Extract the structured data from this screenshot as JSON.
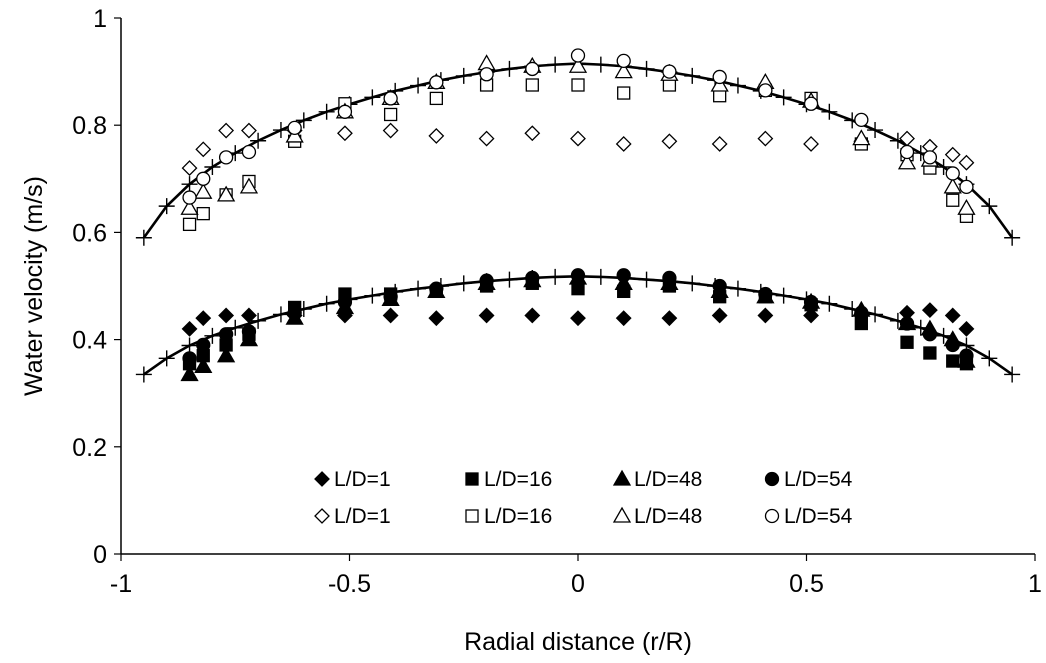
{
  "chart_data": {
    "type": "scatter",
    "xlabel": "Radial distance (r/R)",
    "ylabel": "Water velocity (m/s)",
    "xlim": [
      -1,
      1
    ],
    "ylim": [
      0,
      1
    ],
    "x_ticks": [
      "-1",
      "-0.5",
      "0",
      "0.5",
      "1"
    ],
    "y_ticks": [
      "0",
      "0.2",
      "0.4",
      "0.6",
      "0.8",
      "1"
    ],
    "grid": false,
    "legend_position": "bottom-center",
    "series": [
      {
        "name": "L/D=1",
        "marker": "diamond",
        "filled": true,
        "x": [
          -0.85,
          -0.82,
          -0.77,
          -0.72,
          -0.62,
          -0.51,
          -0.41,
          -0.31,
          -0.2,
          -0.1,
          0,
          0.1,
          0.2,
          0.31,
          0.41,
          0.51,
          0.62,
          0.72,
          0.77,
          0.82,
          0.85
        ],
        "y": [
          0.42,
          0.44,
          0.445,
          0.445,
          0.445,
          0.445,
          0.445,
          0.44,
          0.445,
          0.445,
          0.44,
          0.44,
          0.44,
          0.445,
          0.445,
          0.445,
          0.445,
          0.45,
          0.455,
          0.445,
          0.42
        ]
      },
      {
        "name": "L/D=16",
        "marker": "square",
        "filled": true,
        "x": [
          -0.85,
          -0.82,
          -0.77,
          -0.72,
          -0.62,
          -0.51,
          -0.41,
          -0.31,
          -0.2,
          -0.1,
          0,
          0.1,
          0.2,
          0.31,
          0.41,
          0.51,
          0.62,
          0.72,
          0.77,
          0.82,
          0.85
        ],
        "y": [
          0.355,
          0.37,
          0.39,
          0.41,
          0.46,
          0.485,
          0.485,
          0.49,
          0.5,
          0.505,
          0.495,
          0.49,
          0.5,
          0.48,
          0.48,
          0.465,
          0.43,
          0.395,
          0.375,
          0.36,
          0.355
        ]
      },
      {
        "name": "L/D=48",
        "marker": "triangle",
        "filled": true,
        "x": [
          -0.85,
          -0.82,
          -0.77,
          -0.72,
          -0.62,
          -0.51,
          -0.41,
          -0.31,
          -0.2,
          -0.1,
          0,
          0.1,
          0.2,
          0.31,
          0.41,
          0.51,
          0.62,
          0.72,
          0.77,
          0.82,
          0.85
        ],
        "y": [
          0.335,
          0.35,
          0.37,
          0.4,
          0.44,
          0.46,
          0.475,
          0.49,
          0.505,
          0.51,
          0.515,
          0.505,
          0.505,
          0.49,
          0.48,
          0.47,
          0.455,
          0.43,
          0.42,
          0.4,
          0.36
        ]
      },
      {
        "name": "L/D=54",
        "marker": "circle",
        "filled": true,
        "x": [
          -0.85,
          -0.82,
          -0.77,
          -0.72,
          -0.62,
          -0.51,
          -0.41,
          -0.31,
          -0.2,
          -0.1,
          0,
          0.1,
          0.2,
          0.31,
          0.41,
          0.51,
          0.62,
          0.72,
          0.77,
          0.82,
          0.85
        ],
        "y": [
          0.365,
          0.39,
          0.41,
          0.415,
          0.45,
          0.47,
          0.48,
          0.495,
          0.51,
          0.515,
          0.52,
          0.52,
          0.515,
          0.5,
          0.485,
          0.47,
          0.45,
          0.43,
          0.41,
          0.39,
          0.37
        ]
      },
      {
        "name": "L/D=1",
        "marker": "diamond",
        "filled": false,
        "x": [
          -0.85,
          -0.82,
          -0.77,
          -0.72,
          -0.62,
          -0.51,
          -0.41,
          -0.31,
          -0.2,
          -0.1,
          0,
          0.1,
          0.2,
          0.31,
          0.41,
          0.51,
          0.62,
          0.72,
          0.77,
          0.82,
          0.85
        ],
        "y": [
          0.72,
          0.755,
          0.79,
          0.79,
          0.79,
          0.785,
          0.79,
          0.78,
          0.775,
          0.785,
          0.775,
          0.765,
          0.77,
          0.765,
          0.775,
          0.765,
          0.77,
          0.775,
          0.76,
          0.745,
          0.73
        ]
      },
      {
        "name": "L/D=16",
        "marker": "square",
        "filled": false,
        "x": [
          -0.85,
          -0.82,
          -0.77,
          -0.72,
          -0.62,
          -0.51,
          -0.41,
          -0.31,
          -0.2,
          -0.1,
          0,
          0.1,
          0.2,
          0.31,
          0.41,
          0.51,
          0.62,
          0.72,
          0.77,
          0.82,
          0.85
        ],
        "y": [
          0.615,
          0.635,
          0.67,
          0.695,
          0.77,
          0.84,
          0.82,
          0.85,
          0.875,
          0.875,
          0.875,
          0.86,
          0.875,
          0.855,
          0.865,
          0.85,
          0.765,
          0.745,
          0.72,
          0.66,
          0.63
        ]
      },
      {
        "name": "L/D=48",
        "marker": "triangle",
        "filled": false,
        "x": [
          -0.85,
          -0.82,
          -0.77,
          -0.72,
          -0.62,
          -0.51,
          -0.41,
          -0.31,
          -0.2,
          -0.1,
          0,
          0.1,
          0.2,
          0.31,
          0.41,
          0.51,
          0.62,
          0.72,
          0.77,
          0.82,
          0.85
        ],
        "y": [
          0.645,
          0.675,
          0.67,
          0.685,
          0.78,
          0.825,
          0.85,
          0.88,
          0.915,
          0.91,
          0.91,
          0.9,
          0.895,
          0.875,
          0.88,
          0.845,
          0.775,
          0.73,
          0.735,
          0.685,
          0.645
        ]
      },
      {
        "name": "L/D=54",
        "marker": "circle",
        "filled": false,
        "x": [
          -0.85,
          -0.82,
          -0.77,
          -0.72,
          -0.62,
          -0.51,
          -0.41,
          -0.31,
          -0.2,
          -0.1,
          0,
          0.1,
          0.2,
          0.31,
          0.41,
          0.51,
          0.62,
          0.72,
          0.77,
          0.82,
          0.85
        ],
        "y": [
          0.665,
          0.7,
          0.74,
          0.75,
          0.795,
          0.825,
          0.85,
          0.88,
          0.895,
          0.905,
          0.93,
          0.92,
          0.9,
          0.89,
          0.865,
          0.84,
          0.81,
          0.75,
          0.74,
          0.71,
          0.685
        ]
      }
    ],
    "fit_curves": [
      {
        "marker": "plus",
        "x": [
          -0.95,
          -0.9,
          -0.85,
          -0.8,
          -0.75,
          -0.7,
          -0.65,
          -0.6,
          -0.55,
          -0.5,
          -0.45,
          -0.4,
          -0.35,
          -0.3,
          -0.25,
          -0.2,
          -0.15,
          -0.1,
          -0.05,
          0,
          0.05,
          0.1,
          0.15,
          0.2,
          0.25,
          0.3,
          0.35,
          0.4,
          0.45,
          0.5,
          0.55,
          0.6,
          0.65,
          0.7,
          0.75,
          0.8,
          0.85,
          0.9,
          0.95
        ],
        "y": [
          0.59,
          0.649,
          0.69,
          0.722,
          0.748,
          0.771,
          0.791,
          0.809,
          0.825,
          0.839,
          0.852,
          0.864,
          0.874,
          0.884,
          0.892,
          0.899,
          0.905,
          0.91,
          0.913,
          0.915,
          0.913,
          0.91,
          0.905,
          0.899,
          0.892,
          0.884,
          0.874,
          0.864,
          0.852,
          0.839,
          0.825,
          0.809,
          0.791,
          0.771,
          0.748,
          0.722,
          0.69,
          0.649,
          0.59
        ]
      },
      {
        "marker": "plus",
        "x": [
          -0.95,
          -0.9,
          -0.85,
          -0.8,
          -0.75,
          -0.7,
          -0.65,
          -0.6,
          -0.55,
          -0.5,
          -0.45,
          -0.4,
          -0.35,
          -0.3,
          -0.25,
          -0.2,
          -0.15,
          -0.1,
          -0.05,
          0,
          0.05,
          0.1,
          0.15,
          0.2,
          0.25,
          0.3,
          0.35,
          0.4,
          0.45,
          0.5,
          0.55,
          0.6,
          0.65,
          0.7,
          0.75,
          0.8,
          0.85,
          0.9,
          0.95
        ],
        "y": [
          0.335,
          0.365,
          0.389,
          0.407,
          0.422,
          0.435,
          0.447,
          0.457,
          0.467,
          0.475,
          0.482,
          0.489,
          0.495,
          0.5,
          0.505,
          0.509,
          0.512,
          0.515,
          0.517,
          0.518,
          0.517,
          0.515,
          0.512,
          0.509,
          0.505,
          0.5,
          0.495,
          0.489,
          0.482,
          0.475,
          0.467,
          0.457,
          0.447,
          0.435,
          0.422,
          0.407,
          0.389,
          0.365,
          0.335
        ]
      }
    ]
  }
}
